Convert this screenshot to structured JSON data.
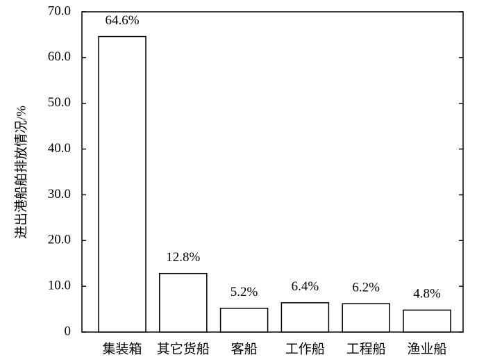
{
  "chart_data": {
    "type": "bar",
    "y_label": "进出港船舶排放情况/%",
    "categories": [
      "集装箱",
      "其它货船",
      "客船",
      "工作船",
      "工程船",
      "渔业船"
    ],
    "values": [
      64.6,
      12.8,
      5.2,
      6.4,
      6.2,
      4.8
    ],
    "value_labels": [
      "64.6%",
      "12.8%",
      "5.2%",
      "6.4%",
      "6.2%",
      "4.8%"
    ],
    "color": "#ffffff",
    "ylim": [
      0,
      70
    ],
    "yticks": [
      0,
      {
        "value": 10,
        "label": "10.0"
      },
      {
        "value": 20,
        "label": "20.0"
      },
      {
        "value": 30,
        "label": "30.0"
      },
      {
        "value": 40,
        "label": "40.0"
      },
      {
        "value": 50,
        "label": "50.0"
      },
      {
        "value": 60,
        "label": "60.0"
      },
      {
        "value": 70,
        "label": "70.0"
      }
    ],
    "grid": false
  }
}
